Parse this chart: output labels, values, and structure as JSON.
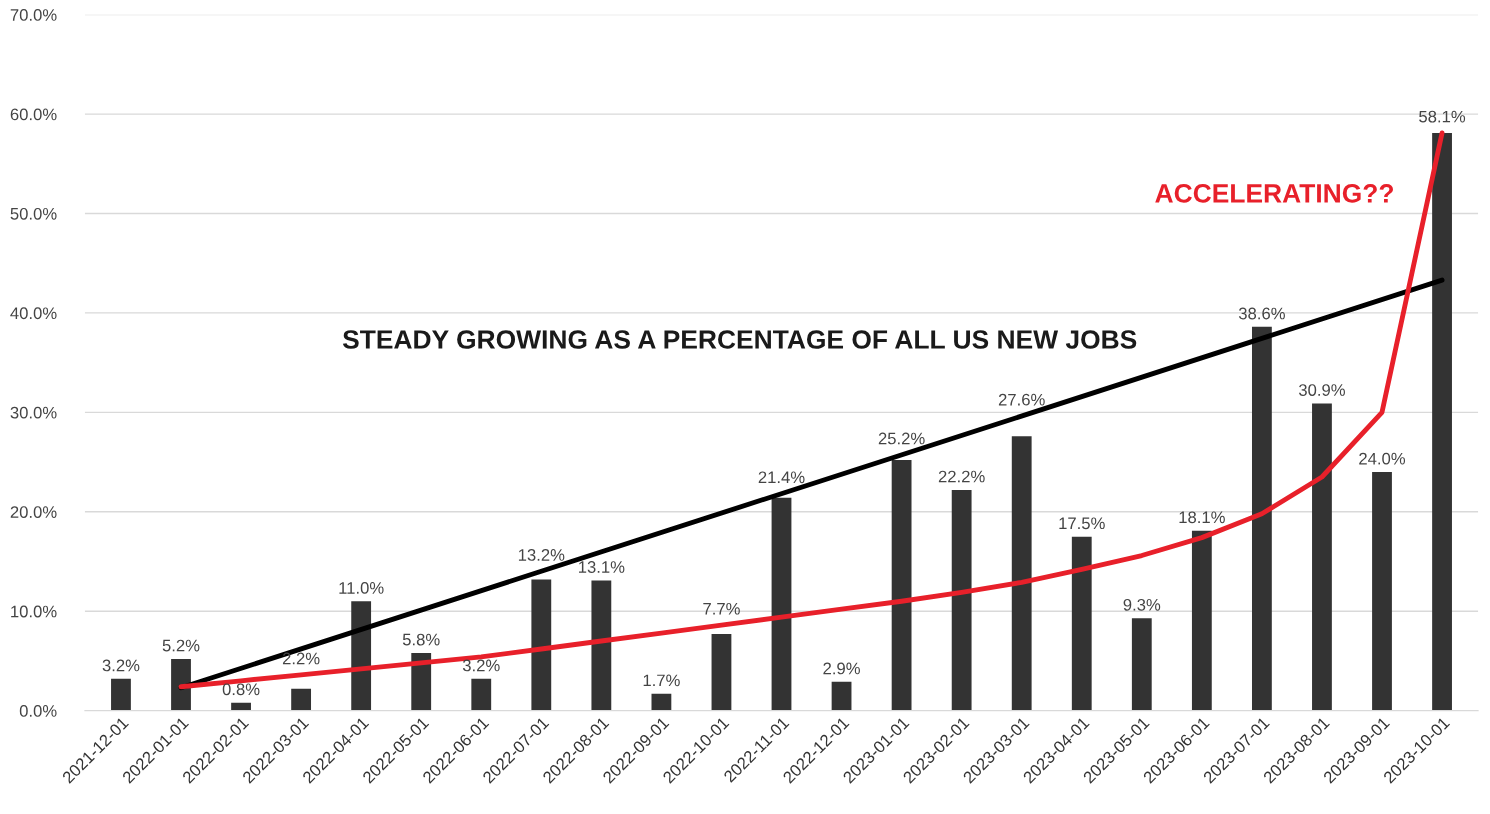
{
  "chart_data": {
    "type": "bar",
    "categories": [
      "2021-12-01",
      "2022-01-01",
      "2022-02-01",
      "2022-03-01",
      "2022-04-01",
      "2022-05-01",
      "2022-06-01",
      "2022-07-01",
      "2022-08-01",
      "2022-09-01",
      "2022-10-01",
      "2022-11-01",
      "2022-12-01",
      "2023-01-01",
      "2023-02-01",
      "2023-03-01",
      "2023-04-01",
      "2023-05-01",
      "2023-06-01",
      "2023-07-01",
      "2023-08-01",
      "2023-09-01",
      "2023-10-01"
    ],
    "series": [
      {
        "color": "#333333",
        "values": [
          3.2,
          5.2,
          0.8,
          2.2,
          11.0,
          5.8,
          3.2,
          13.2,
          13.1,
          1.7,
          7.7,
          21.4,
          2.9,
          25.2,
          22.2,
          27.6,
          17.5,
          9.3,
          18.1,
          38.6,
          30.9,
          24.0,
          58.1
        ],
        "value_labels": [
          "3.2%",
          "5.2%",
          "0.8%",
          "2.2%",
          "11.0%",
          "5.8%",
          "3.2%",
          "13.2%",
          "13.1%",
          "1.7%",
          "7.7%",
          "21.4%",
          "2.9%",
          "25.2%",
          "22.2%",
          "27.6%",
          "17.5%",
          "9.3%",
          "18.1%",
          "38.6%",
          "30.9%",
          "24.0%",
          "58.1%"
        ]
      },
      {
        "type": "line",
        "color": "#000000",
        "values": [
          null,
          2.3,
          null,
          null,
          null,
          null,
          null,
          null,
          null,
          null,
          null,
          null,
          null,
          null,
          null,
          null,
          null,
          null,
          null,
          null,
          null,
          null,
          43.3
        ]
      },
      {
        "type": "line",
        "color": "#e8202a",
        "values": [
          null,
          2.4,
          3.0,
          3.6,
          4.2,
          4.8,
          5.4,
          6.2,
          7.0,
          7.8,
          8.6,
          9.4,
          10.2,
          11.0,
          11.9,
          12.9,
          14.2,
          15.6,
          17.4,
          19.8,
          23.5,
          30.0,
          58.1
        ]
      }
    ],
    "annotations": [
      "STEADY GROWING AS A PERCENTAGE OF ALL US NEW JOBS",
      "ACCELERATING??"
    ],
    "ylim": [
      0,
      70
    ],
    "yticks": [
      {
        "value": 0,
        "label": "0.0%"
      },
      {
        "value": 10,
        "label": "10.0%"
      },
      {
        "value": 20,
        "label": "20.0%"
      },
      {
        "value": 30,
        "label": "30.0%"
      },
      {
        "value": 40,
        "label": "40.0%"
      },
      {
        "value": 50,
        "label": "50.0%"
      },
      {
        "value": 60,
        "label": "60.0%"
      },
      {
        "value": 70,
        "label": "70.0%"
      }
    ],
    "grid": "y"
  }
}
